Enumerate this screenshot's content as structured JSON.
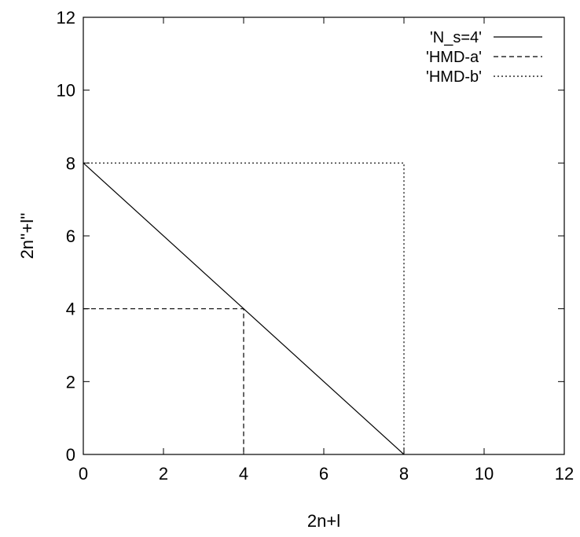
{
  "chart_data": {
    "type": "line",
    "title": "",
    "xlabel": "2n+l",
    "ylabel": "2n''+l''",
    "xlim": [
      0,
      12
    ],
    "ylim": [
      0,
      12
    ],
    "xticks": [
      0,
      2,
      4,
      6,
      8,
      10,
      12
    ],
    "yticks": [
      0,
      2,
      4,
      6,
      8,
      10,
      12
    ],
    "grid": false,
    "legend_position": "top-right",
    "series": [
      {
        "name": "'N_s=4'",
        "style": "solid",
        "color": "#000000",
        "x": [
          0,
          8
        ],
        "y": [
          8,
          0
        ]
      },
      {
        "name": "'HMD-a'",
        "style": "dashed",
        "color": "#000000",
        "x": [
          0,
          4,
          4
        ],
        "y": [
          4,
          4,
          0
        ]
      },
      {
        "name": "'HMD-b'",
        "style": "dotted",
        "color": "#000000",
        "x": [
          0,
          8,
          8
        ],
        "y": [
          8,
          8,
          0
        ]
      }
    ]
  }
}
